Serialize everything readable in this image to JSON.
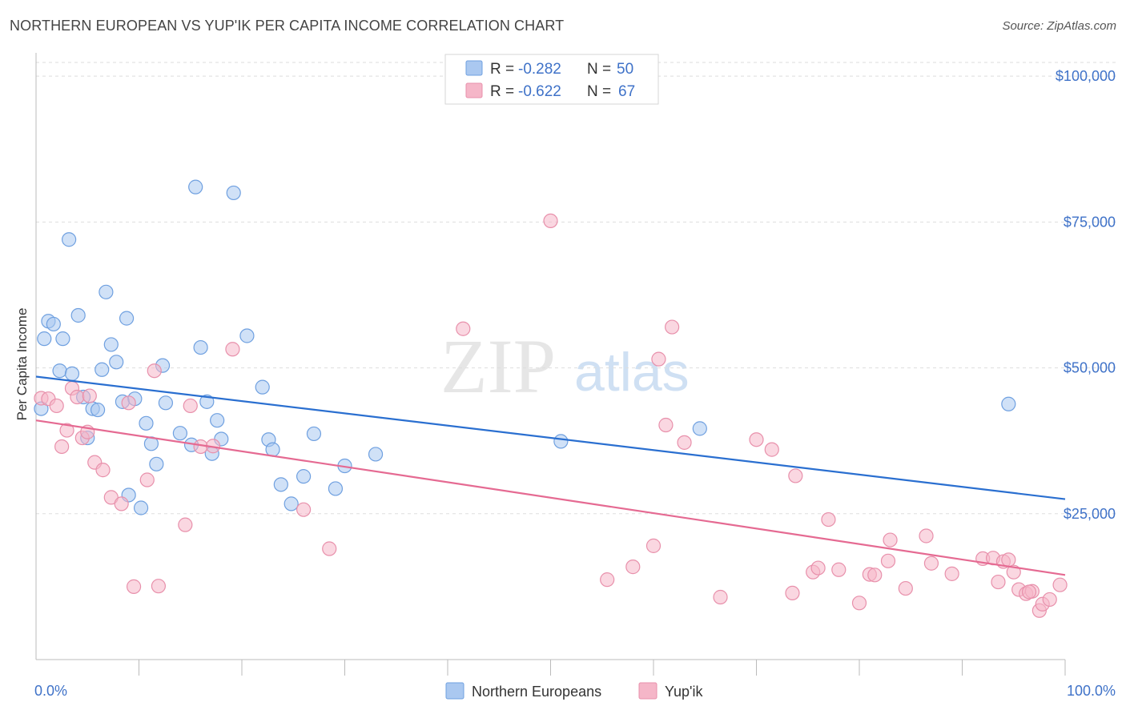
{
  "header": {
    "title": "NORTHERN EUROPEAN VS YUP'IK PER CAPITA INCOME CORRELATION CHART",
    "source": "Source: ZipAtlas.com"
  },
  "watermark": {
    "zip": "ZIP",
    "atlas": "atlas"
  },
  "legend": {
    "rows": [
      {
        "r_label": "R =",
        "r_value": "-0.282",
        "n_label": "N =",
        "n_value": "50",
        "color": "#aac8f0"
      },
      {
        "r_label": "R =",
        "r_value": "-0.622",
        "n_label": "N =",
        "n_value": "67",
        "color": "#f5b6c8"
      }
    ]
  },
  "chart_data": {
    "type": "scatter",
    "title": "NORTHERN EUROPEAN VS YUP'IK PER CAPITA INCOME CORRELATION CHART",
    "ylabel": "Per Capita Income",
    "xlabel": "",
    "xlim": [
      0,
      100
    ],
    "ylim": [
      0,
      104000
    ],
    "x_tick_labels": [
      "0.0%",
      "100.0%"
    ],
    "y_ticks": [
      25000,
      50000,
      75000,
      100000
    ],
    "y_tick_labels": [
      "$25,000",
      "$50,000",
      "$75,000",
      "$100,000"
    ],
    "grid": true,
    "legend_position": "top-center",
    "series": [
      {
        "name": "Northern Europeans",
        "color": "#6fa0e0",
        "fill": "#aac8f0",
        "trend_color": "#2a6fd0",
        "trend": {
          "x": [
            0,
            100
          ],
          "y": [
            48500,
            27500
          ]
        },
        "points": [
          [
            0.5,
            43000
          ],
          [
            0.8,
            55000
          ],
          [
            1.2,
            58000
          ],
          [
            1.7,
            57500
          ],
          [
            2.3,
            49500
          ],
          [
            2.6,
            55000
          ],
          [
            3.2,
            72000
          ],
          [
            3.5,
            49000
          ],
          [
            4.1,
            59000
          ],
          [
            4.6,
            45000
          ],
          [
            5.0,
            38000
          ],
          [
            5.5,
            43000
          ],
          [
            6.0,
            42800
          ],
          [
            6.4,
            49700
          ],
          [
            6.8,
            63000
          ],
          [
            7.3,
            54000
          ],
          [
            7.8,
            51000
          ],
          [
            8.4,
            44200
          ],
          [
            8.8,
            58500
          ],
          [
            9.0,
            28200
          ],
          [
            9.6,
            44700
          ],
          [
            10.2,
            26000
          ],
          [
            10.7,
            40500
          ],
          [
            11.2,
            37000
          ],
          [
            11.7,
            33500
          ],
          [
            12.3,
            50400
          ],
          [
            12.6,
            44000
          ],
          [
            14.0,
            38800
          ],
          [
            15.1,
            36800
          ],
          [
            15.5,
            81000
          ],
          [
            16.0,
            53500
          ],
          [
            16.6,
            44200
          ],
          [
            17.1,
            35300
          ],
          [
            17.6,
            41000
          ],
          [
            18.0,
            37800
          ],
          [
            19.2,
            80000
          ],
          [
            20.5,
            55500
          ],
          [
            22.0,
            46700
          ],
          [
            22.6,
            37700
          ],
          [
            23.0,
            36000
          ],
          [
            23.8,
            30000
          ],
          [
            24.8,
            26700
          ],
          [
            26.0,
            31400
          ],
          [
            27.0,
            38700
          ],
          [
            29.1,
            29300
          ],
          [
            30.0,
            33200
          ],
          [
            33.0,
            35200
          ],
          [
            51.0,
            37400
          ],
          [
            64.5,
            39600
          ],
          [
            94.5,
            43800
          ]
        ]
      },
      {
        "name": "Yup'ik",
        "color": "#e890ab",
        "fill": "#f5b6c8",
        "trend_color": "#e56a92",
        "trend": {
          "x": [
            0,
            100
          ],
          "y": [
            41000,
            14500
          ]
        },
        "points": [
          [
            0.5,
            44800
          ],
          [
            1.2,
            44700
          ],
          [
            2.0,
            43500
          ],
          [
            2.5,
            36500
          ],
          [
            3.0,
            39300
          ],
          [
            3.5,
            46500
          ],
          [
            4.0,
            45000
          ],
          [
            4.5,
            38000
          ],
          [
            5.0,
            39000
          ],
          [
            5.2,
            45200
          ],
          [
            5.7,
            33800
          ],
          [
            6.5,
            32500
          ],
          [
            7.3,
            27800
          ],
          [
            8.3,
            26700
          ],
          [
            9.0,
            44000
          ],
          [
            9.5,
            12500
          ],
          [
            10.8,
            30800
          ],
          [
            11.5,
            49500
          ],
          [
            11.9,
            12600
          ],
          [
            14.5,
            23100
          ],
          [
            15.0,
            43500
          ],
          [
            16.0,
            36500
          ],
          [
            17.2,
            36600
          ],
          [
            19.1,
            53200
          ],
          [
            26.0,
            25700
          ],
          [
            28.5,
            19000
          ],
          [
            41.5,
            56700
          ],
          [
            50.0,
            75200
          ],
          [
            55.5,
            13700
          ],
          [
            58.0,
            15900
          ],
          [
            60.0,
            19500
          ],
          [
            60.5,
            51500
          ],
          [
            61.2,
            40200
          ],
          [
            61.8,
            57000
          ],
          [
            63.0,
            37200
          ],
          [
            66.5,
            10700
          ],
          [
            70.0,
            37700
          ],
          [
            71.5,
            36000
          ],
          [
            73.5,
            11400
          ],
          [
            73.8,
            31500
          ],
          [
            75.5,
            15000
          ],
          [
            76.0,
            15700
          ],
          [
            77.0,
            24000
          ],
          [
            78.0,
            15400
          ],
          [
            80.0,
            9700
          ],
          [
            81.0,
            14600
          ],
          [
            81.5,
            14500
          ],
          [
            82.8,
            16900
          ],
          [
            83.0,
            20500
          ],
          [
            84.5,
            12200
          ],
          [
            86.5,
            21200
          ],
          [
            87.0,
            16500
          ],
          [
            89.0,
            14700
          ],
          [
            92.0,
            17300
          ],
          [
            93.0,
            17400
          ],
          [
            93.5,
            13300
          ],
          [
            94.0,
            16800
          ],
          [
            94.5,
            17100
          ],
          [
            95.0,
            15000
          ],
          [
            95.5,
            12000
          ],
          [
            96.2,
            11300
          ],
          [
            96.8,
            11700
          ],
          [
            97.5,
            8400
          ],
          [
            97.8,
            9500
          ],
          [
            98.5,
            10300
          ],
          [
            99.5,
            12800
          ],
          [
            96.5,
            11600
          ]
        ]
      }
    ]
  },
  "bottom_legend": {
    "items": [
      {
        "label": "Northern Europeans",
        "color": "#aac8f0"
      },
      {
        "label": "Yup'ik",
        "color": "#f5b6c8"
      }
    ]
  }
}
